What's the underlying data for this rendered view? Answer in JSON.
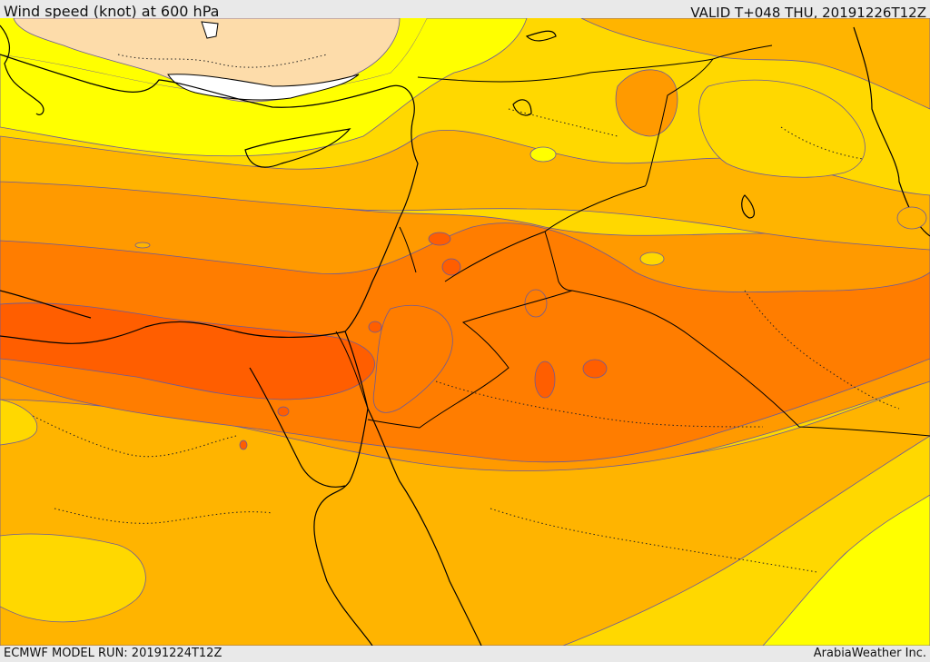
{
  "header": {
    "title": "Wind speed (knot) at 600 hPa",
    "valid": "VALID T+048 THU, 20191226T12Z"
  },
  "footer": {
    "model_run": "ECMWF MODEL RUN: 20191224T12Z",
    "credit": "ArabiaWeather Inc."
  },
  "colors": {
    "band_lightest": "#fddcaa",
    "band_yellow": "#ffff00",
    "band_gold": "#ffd800",
    "band_amber": "#ffb400",
    "band_orange": "#ff9a00",
    "band_dark_orange": "#ff7d00",
    "band_red_orange": "#ff5e00",
    "water": "#ffffff",
    "contour_line": "#6b5a9a",
    "border_line": "#000000"
  }
}
